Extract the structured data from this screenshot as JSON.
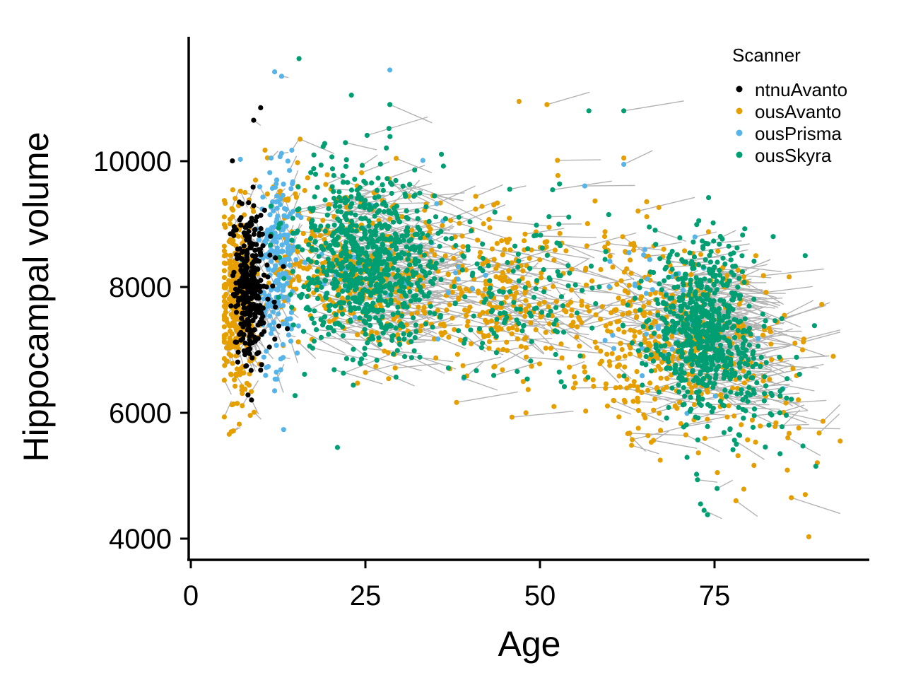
{
  "chart_data": {
    "type": "scatter",
    "xlabel": "Age",
    "ylabel": "Hippocampal volume",
    "xlim": [
      0,
      98
    ],
    "ylim": [
      3700,
      12000
    ],
    "x_ticks": [
      0,
      25,
      50,
      75
    ],
    "x_tick_labels": [
      "0",
      "25",
      "50",
      "75"
    ],
    "y_ticks": [
      4000,
      6000,
      8000,
      10000
    ],
    "y_tick_labels": [
      "4000",
      "6000",
      "8000",
      "10000"
    ],
    "grid": false,
    "lines_connect_repeated_measures": true,
    "line_color": "#b3b3b3",
    "legend": {
      "title": "Scanner",
      "position": "top-right",
      "entries": [
        {
          "label": "ntnuAvanto",
          "color": "#000000"
        },
        {
          "label": "ousAvanto",
          "color": "#E69F00"
        },
        {
          "label": "ousPrisma",
          "color": "#56B4E9"
        },
        {
          "label": "ousSkyra",
          "color": "#009E73"
        }
      ]
    },
    "series": [
      {
        "name": "ntnuAvanto",
        "color": "#000000",
        "clusters": [
          {
            "x_mean": 8.5,
            "x_sd": 1.3,
            "y_mean": 8000,
            "y_sd": 650,
            "n": 320
          }
        ]
      },
      {
        "name": "ousAvanto",
        "color": "#E69F00",
        "clusters": [
          {
            "x_mean": 6.5,
            "x_sd": 1.2,
            "y_mean": 7700,
            "y_sd": 750,
            "n": 320
          },
          {
            "x_mean": 22,
            "x_sd": 7,
            "y_mean": 8300,
            "y_sd": 700,
            "n": 360
          },
          {
            "x_mean": 45,
            "x_sd": 9,
            "y_mean": 7900,
            "y_sd": 700,
            "n": 330
          },
          {
            "x_mean": 68,
            "x_sd": 6,
            "y_mean": 7200,
            "y_sd": 750,
            "n": 360
          },
          {
            "x_mean": 82,
            "x_sd": 5,
            "y_mean": 6300,
            "y_sd": 900,
            "n": 60
          }
        ]
      },
      {
        "name": "ousPrisma",
        "color": "#56B4E9",
        "clusters": [
          {
            "x_mean": 12.5,
            "x_sd": 1.5,
            "y_mean": 8400,
            "y_sd": 800,
            "n": 220
          },
          {
            "x_mean": 30,
            "x_sd": 8,
            "y_mean": 8400,
            "y_sd": 700,
            "n": 40
          },
          {
            "x_mean": 68,
            "x_sd": 6,
            "y_mean": 7600,
            "y_sd": 700,
            "n": 40
          }
        ]
      },
      {
        "name": "ousSkyra",
        "color": "#009E73",
        "clusters": [
          {
            "x_mean": 25,
            "x_sd": 5,
            "y_mean": 8400,
            "y_sd": 700,
            "n": 750
          },
          {
            "x_mean": 45,
            "x_sd": 10,
            "y_mean": 7900,
            "y_sd": 700,
            "n": 180
          },
          {
            "x_mean": 73,
            "x_sd": 3.5,
            "y_mean": 7300,
            "y_sd": 650,
            "n": 650
          },
          {
            "x_mean": 80,
            "x_sd": 4,
            "y_mean": 6500,
            "y_sd": 700,
            "n": 80
          }
        ]
      }
    ],
    "notable_points": [
      {
        "series": "ntnuAvanto",
        "x": 10,
        "y": 10850
      },
      {
        "series": "ntnuAvanto",
        "x": 9,
        "y": 10650
      },
      {
        "series": "ousPrisma",
        "x": 12,
        "y": 11420
      },
      {
        "series": "ousPrisma",
        "x": 28.5,
        "y": 11450
      },
      {
        "series": "ousPrisma",
        "x": 13,
        "y": 11350
      },
      {
        "series": "ousSkyra",
        "x": 15.5,
        "y": 11630
      },
      {
        "series": "ousSkyra",
        "x": 23,
        "y": 11050
      },
      {
        "series": "ousSkyra",
        "x": 28.5,
        "y": 10900
      },
      {
        "series": "ousSkyra",
        "x": 21,
        "y": 5450
      },
      {
        "series": "ousSkyra",
        "x": 73,
        "y": 4550
      },
      {
        "series": "ousSkyra",
        "x": 73.5,
        "y": 4450
      },
      {
        "series": "ousSkyra",
        "x": 74,
        "y": 4380
      },
      {
        "series": "ousSkyra",
        "x": 89.5,
        "y": 5150
      },
      {
        "series": "ousSkyra",
        "x": 62,
        "y": 10800
      },
      {
        "series": "ousSkyra",
        "x": 57,
        "y": 10800
      },
      {
        "series": "ousAvanto",
        "x": 47,
        "y": 10950
      },
      {
        "series": "ousAvanto",
        "x": 51,
        "y": 10900
      },
      {
        "series": "ousAvanto",
        "x": 88.5,
        "y": 4030
      },
      {
        "series": "ousAvanto",
        "x": 93,
        "y": 5550
      },
      {
        "series": "ousAvanto",
        "x": 86,
        "y": 4650
      },
      {
        "series": "ousAvanto",
        "x": 88,
        "y": 4700
      },
      {
        "series": "ousAvanto",
        "x": 5.5,
        "y": 5660
      },
      {
        "series": "ousAvanto",
        "x": 5.8,
        "y": 5700
      },
      {
        "series": "ousAvanto",
        "x": 48,
        "y": 6000
      },
      {
        "series": "ousAvanto",
        "x": 52,
        "y": 6100
      },
      {
        "series": "ousAvanto",
        "x": 85,
        "y": 7550
      },
      {
        "series": "ousAvanto",
        "x": 62,
        "y": 10050
      },
      {
        "series": "ousPrisma",
        "x": 12,
        "y": 6350
      },
      {
        "series": "ousPrisma",
        "x": 62,
        "y": 9950
      }
    ]
  }
}
